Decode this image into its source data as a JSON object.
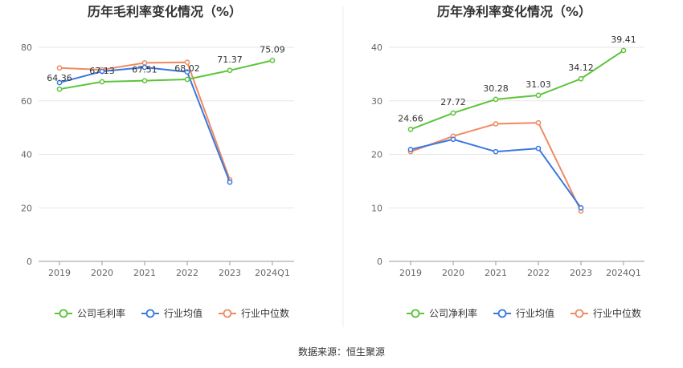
{
  "source": "数据来源：恒生聚源",
  "colors": {
    "company": "#5cc43a",
    "avg": "#3a78e0",
    "median": "#ef8a62"
  },
  "chart_data": [
    {
      "type": "line",
      "title": "历年毛利率变化情况（%）",
      "categories": [
        "2019",
        "2020",
        "2021",
        "2022",
        "2023",
        "2024Q1"
      ],
      "ylim": [
        0,
        80
      ],
      "yticks": [
        0,
        20,
        40,
        60,
        80
      ],
      "grid": true,
      "legend_position": "bottom",
      "series": [
        {
          "name": "公司毛利率",
          "key": "company",
          "values": [
            64.36,
            67.13,
            67.51,
            68.02,
            71.37,
            75.09
          ],
          "labels": [
            "64.36",
            "67.13",
            "67.51",
            "68.02",
            "71.37",
            "75.09"
          ]
        },
        {
          "name": "行业均值",
          "key": "avg",
          "values": [
            66.8,
            71.0,
            72.5,
            70.8,
            29.6,
            null
          ]
        },
        {
          "name": "行业中位数",
          "key": "median",
          "values": [
            72.3,
            71.6,
            74.2,
            74.4,
            30.5,
            null
          ]
        }
      ]
    },
    {
      "type": "line",
      "title": "历年净利率变化情况（%）",
      "categories": [
        "2019",
        "2020",
        "2021",
        "2022",
        "2023",
        "2024Q1"
      ],
      "ylim": [
        0,
        40
      ],
      "yticks": [
        0,
        10,
        20,
        30,
        40
      ],
      "grid": true,
      "legend_position": "bottom",
      "series": [
        {
          "name": "公司净利率",
          "key": "company",
          "values": [
            24.66,
            27.72,
            30.28,
            31.03,
            34.12,
            39.41
          ],
          "labels": [
            "24.66",
            "27.72",
            "30.28",
            "31.03",
            "34.12",
            "39.41"
          ]
        },
        {
          "name": "行业均值",
          "key": "avg",
          "values": [
            20.9,
            22.8,
            20.5,
            21.1,
            10.0,
            null
          ]
        },
        {
          "name": "行业中位数",
          "key": "median",
          "values": [
            20.5,
            23.4,
            25.7,
            25.9,
            9.4,
            null
          ]
        }
      ]
    }
  ]
}
